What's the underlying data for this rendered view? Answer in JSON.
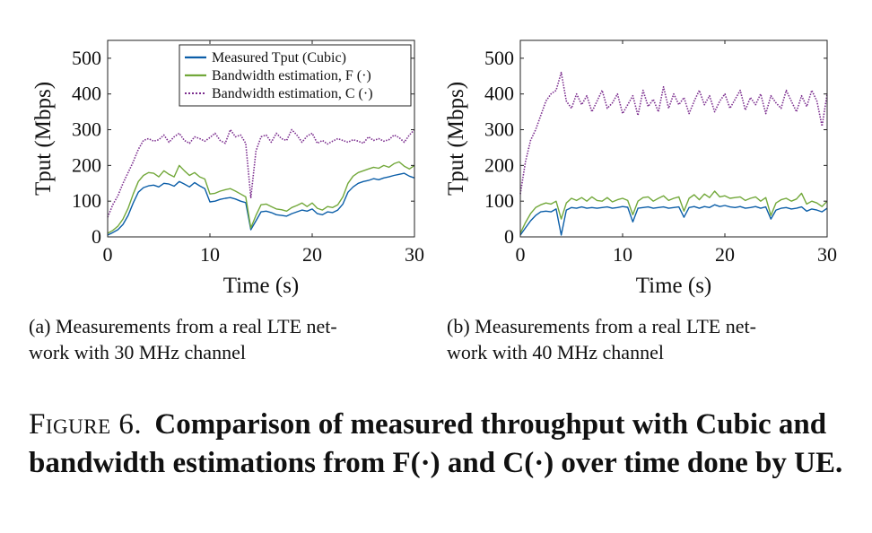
{
  "chart_data": [
    {
      "type": "line",
      "subcaption_lines": [
        "(a)  Measurements from a real LTE net-",
        "work with 30 MHz channel"
      ],
      "xlabel": "Time (s)",
      "ylabel": "Tput (Mbps)",
      "xlim": [
        0,
        30
      ],
      "ylim": [
        0,
        550
      ],
      "xticks": [
        0,
        10,
        20,
        30
      ],
      "yticks": [
        0,
        100,
        200,
        300,
        400,
        500
      ],
      "grid": false,
      "legend": {
        "placement": "top-right"
      },
      "series": [
        {
          "name": "Measured Tput (Cubic)",
          "color": "#0b5ea8",
          "style": "solid",
          "x": [
            0,
            0.5,
            1,
            1.5,
            2,
            2.5,
            3,
            3.5,
            4,
            4.5,
            5,
            5.5,
            6,
            6.5,
            7,
            7.5,
            8,
            8.5,
            9,
            9.5,
            10,
            10.5,
            11,
            11.5,
            12,
            12.5,
            13,
            13.5,
            14,
            14.5,
            15,
            15.5,
            16,
            16.5,
            17,
            17.5,
            18,
            18.5,
            19,
            19.5,
            20,
            20.5,
            21,
            21.5,
            22,
            22.5,
            23,
            23.5,
            24,
            24.5,
            25,
            25.5,
            26,
            26.5,
            27,
            27.5,
            28,
            28.5,
            29,
            29.5,
            30
          ],
          "y": [
            5,
            12,
            20,
            35,
            60,
            95,
            125,
            138,
            143,
            145,
            140,
            150,
            148,
            142,
            155,
            148,
            140,
            152,
            143,
            135,
            98,
            100,
            105,
            108,
            110,
            106,
            100,
            96,
            20,
            45,
            70,
            72,
            68,
            62,
            60,
            58,
            65,
            70,
            75,
            72,
            78,
            65,
            62,
            70,
            68,
            75,
            92,
            125,
            140,
            150,
            155,
            158,
            163,
            160,
            165,
            168,
            172,
            175,
            178,
            170,
            165
          ]
        },
        {
          "name": "Bandwidth estimation, F (·)",
          "color": "#72a83a",
          "style": "solid",
          "x": [
            0,
            0.5,
            1,
            1.5,
            2,
            2.5,
            3,
            3.5,
            4,
            4.5,
            5,
            5.5,
            6,
            6.5,
            7,
            7.5,
            8,
            8.5,
            9,
            9.5,
            10,
            10.5,
            11,
            11.5,
            12,
            12.5,
            13,
            13.5,
            14,
            14.5,
            15,
            15.5,
            16,
            16.5,
            17,
            17.5,
            18,
            18.5,
            19,
            19.5,
            20,
            20.5,
            21,
            21.5,
            22,
            22.5,
            23,
            23.5,
            24,
            24.5,
            25,
            25.5,
            26,
            26.5,
            27,
            27.5,
            28,
            28.5,
            29,
            29.5,
            30
          ],
          "y": [
            10,
            18,
            30,
            50,
            80,
            120,
            155,
            172,
            180,
            178,
            168,
            185,
            175,
            168,
            200,
            185,
            172,
            180,
            168,
            162,
            120,
            122,
            128,
            132,
            135,
            128,
            120,
            112,
            25,
            60,
            90,
            92,
            85,
            78,
            76,
            72,
            82,
            88,
            95,
            85,
            95,
            80,
            75,
            85,
            82,
            90,
            112,
            150,
            170,
            180,
            185,
            190,
            195,
            192,
            200,
            195,
            205,
            210,
            198,
            190,
            200
          ]
        },
        {
          "name": "Bandwidth estimation, C (·)",
          "color": "#7b2d8e",
          "style": "dotted",
          "x": [
            0,
            0.5,
            1,
            1.5,
            2,
            2.5,
            3,
            3.5,
            4,
            4.5,
            5,
            5.5,
            6,
            6.5,
            7,
            7.5,
            8,
            8.5,
            9,
            9.5,
            10,
            10.5,
            11,
            11.5,
            12,
            12.5,
            13,
            13.5,
            14,
            14.5,
            15,
            15.5,
            16,
            16.5,
            17,
            17.5,
            18,
            18.5,
            19,
            19.5,
            20,
            20.5,
            21,
            21.5,
            22,
            22.5,
            23,
            23.5,
            24,
            24.5,
            25,
            25.5,
            26,
            26.5,
            27,
            27.5,
            28,
            28.5,
            29,
            29.5,
            30
          ],
          "y": [
            55,
            90,
            115,
            150,
            180,
            210,
            245,
            270,
            275,
            268,
            272,
            285,
            265,
            280,
            290,
            270,
            262,
            280,
            275,
            268,
            278,
            290,
            270,
            262,
            300,
            280,
            285,
            262,
            110,
            240,
            280,
            285,
            265,
            290,
            275,
            270,
            300,
            285,
            265,
            282,
            290,
            262,
            270,
            260,
            268,
            275,
            270,
            265,
            272,
            268,
            262,
            280,
            270,
            275,
            268,
            272,
            285,
            278,
            265,
            285,
            300
          ]
        }
      ]
    },
    {
      "type": "line",
      "subcaption_lines": [
        "(b)  Measurements from a real LTE net-",
        "work with 40 MHz channel"
      ],
      "xlabel": "Time (s)",
      "ylabel": "Tput (Mbps)",
      "xlim": [
        0,
        30
      ],
      "ylim": [
        0,
        550
      ],
      "xticks": [
        0,
        10,
        20,
        30
      ],
      "yticks": [
        0,
        100,
        200,
        300,
        400,
        500
      ],
      "grid": false,
      "series": [
        {
          "color": "#0b5ea8",
          "style": "solid",
          "x": [
            0,
            0.5,
            1,
            1.5,
            2,
            2.5,
            3,
            3.5,
            4,
            4.5,
            5,
            5.5,
            6,
            6.5,
            7,
            7.5,
            8,
            8.5,
            9,
            9.5,
            10,
            10.5,
            11,
            11.5,
            12,
            12.5,
            13,
            13.5,
            14,
            14.5,
            15,
            15.5,
            16,
            16.5,
            17,
            17.5,
            18,
            18.5,
            19,
            19.5,
            20,
            20.5,
            21,
            21.5,
            22,
            22.5,
            23,
            23.5,
            24,
            24.5,
            25,
            25.5,
            26,
            26.5,
            27,
            27.5,
            28,
            28.5,
            29,
            29.5,
            30
          ],
          "y": [
            5,
            25,
            45,
            60,
            70,
            72,
            70,
            78,
            5,
            75,
            82,
            80,
            84,
            80,
            82,
            80,
            82,
            84,
            80,
            82,
            85,
            83,
            42,
            80,
            82,
            84,
            80,
            82,
            84,
            80,
            82,
            84,
            55,
            82,
            85,
            80,
            85,
            82,
            90,
            85,
            88,
            84,
            82,
            85,
            80,
            82,
            85,
            80,
            84,
            50,
            75,
            80,
            82,
            78,
            80,
            84,
            72,
            78,
            75,
            70,
            80
          ]
        },
        {
          "name": "",
          "color": "#72a83a",
          "style": "solid",
          "x": [
            0,
            0.5,
            1,
            1.5,
            2,
            2.5,
            3,
            3.5,
            4,
            4.5,
            5,
            5.5,
            6,
            6.5,
            7,
            7.5,
            8,
            8.5,
            9,
            9.5,
            10,
            10.5,
            11,
            11.5,
            12,
            12.5,
            13,
            13.5,
            14,
            14.5,
            15,
            15.5,
            16,
            16.5,
            17,
            17.5,
            18,
            18.5,
            19,
            19.5,
            20,
            20.5,
            21,
            21.5,
            22,
            22.5,
            23,
            23.5,
            24,
            24.5,
            25,
            25.5,
            26,
            26.5,
            27,
            27.5,
            28,
            28.5,
            29,
            29.5,
            30
          ],
          "y": [
            10,
            40,
            65,
            82,
            90,
            95,
            92,
            100,
            50,
            95,
            108,
            102,
            110,
            100,
            112,
            102,
            100,
            110,
            98,
            104,
            108,
            102,
            62,
            100,
            110,
            112,
            100,
            108,
            115,
            102,
            108,
            112,
            72,
            108,
            118,
            104,
            120,
            110,
            128,
            112,
            115,
            108,
            110,
            112,
            102,
            108,
            112,
            100,
            110,
            60,
            95,
            104,
            108,
            100,
            106,
            122,
            92,
            100,
            95,
            85,
            100
          ]
        },
        {
          "name": "",
          "color": "#7b2d8e",
          "style": "dotted",
          "x": [
            0,
            0.5,
            1,
            1.5,
            2,
            2.5,
            3,
            3.5,
            4,
            4.5,
            5,
            5.5,
            6,
            6.5,
            7,
            7.5,
            8,
            8.5,
            9,
            9.5,
            10,
            10.5,
            11,
            11.5,
            12,
            12.5,
            13,
            13.5,
            14,
            14.5,
            15,
            15.5,
            16,
            16.5,
            17,
            17.5,
            18,
            18.5,
            19,
            19.5,
            20,
            20.5,
            21,
            21.5,
            22,
            22.5,
            23,
            23.5,
            24,
            24.5,
            25,
            25.5,
            26,
            26.5,
            27,
            27.5,
            28,
            28.5,
            29,
            29.5,
            30
          ],
          "y": [
            120,
            210,
            270,
            300,
            340,
            380,
            400,
            410,
            460,
            380,
            360,
            400,
            370,
            395,
            350,
            380,
            410,
            360,
            375,
            400,
            345,
            370,
            395,
            340,
            410,
            365,
            385,
            350,
            420,
            360,
            400,
            370,
            390,
            345,
            380,
            410,
            370,
            395,
            350,
            380,
            400,
            360,
            385,
            410,
            355,
            390,
            370,
            400,
            345,
            395,
            375,
            360,
            410,
            380,
            350,
            395,
            365,
            410,
            380,
            310,
            400
          ]
        }
      ]
    }
  ],
  "caption": {
    "label": "Figure 6.",
    "text": "Comparison of measured throughput with Cubic and bandwidth estimations from F(·) and C(·) over time done by UE."
  }
}
